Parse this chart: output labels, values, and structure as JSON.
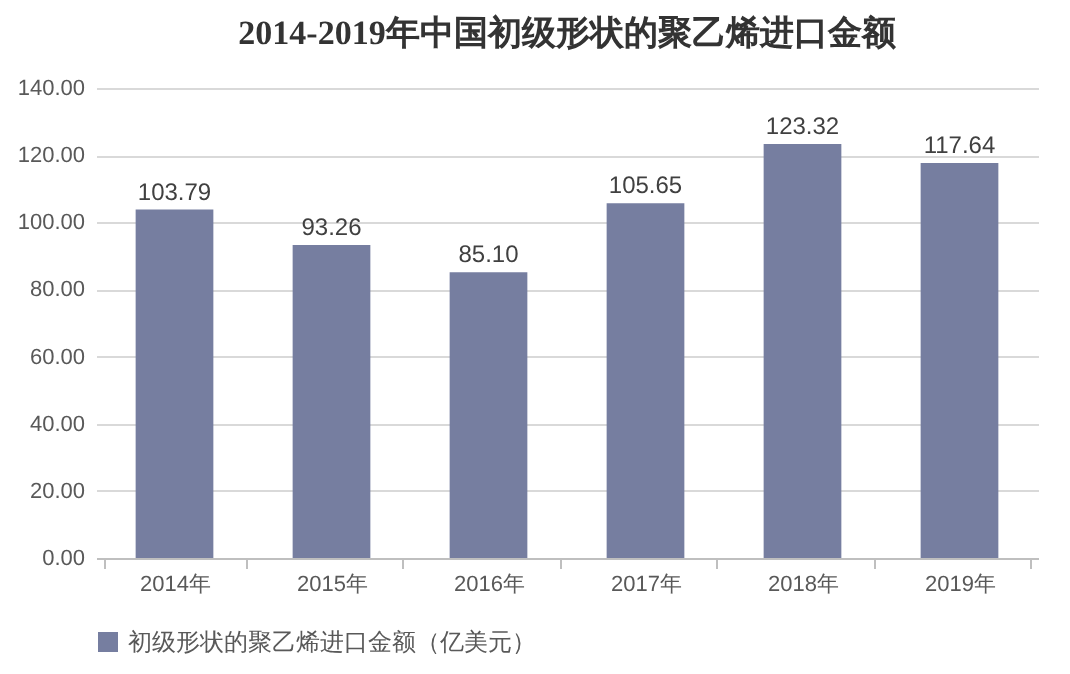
{
  "chart_data": {
    "type": "bar",
    "title": "2014-2019年中国初级形状的聚乙烯进口金额",
    "categories": [
      "2014年",
      "2015年",
      "2016年",
      "2017年",
      "2018年",
      "2019年"
    ],
    "series": [
      {
        "name": "初级形状的聚乙烯进口金额（亿美元）",
        "color": "#767ea0",
        "values": [
          103.79,
          93.26,
          85.1,
          105.65,
          123.32,
          117.64
        ],
        "value_labels": [
          "103.79",
          "93.26",
          "85.10",
          "105.65",
          "123.32",
          "117.64"
        ]
      }
    ],
    "ylim": [
      0,
      140
    ],
    "yticks": [
      {
        "value": 0,
        "label": "0.00"
      },
      {
        "value": 20,
        "label": "20.00"
      },
      {
        "value": 40,
        "label": "40.00"
      },
      {
        "value": 60,
        "label": "60.00"
      },
      {
        "value": 80,
        "label": "80.00"
      },
      {
        "value": 100,
        "label": "100.00"
      },
      {
        "value": 120,
        "label": "120.00"
      },
      {
        "value": 140,
        "label": "140.00"
      }
    ],
    "grid": "y",
    "legend": "bottom"
  }
}
